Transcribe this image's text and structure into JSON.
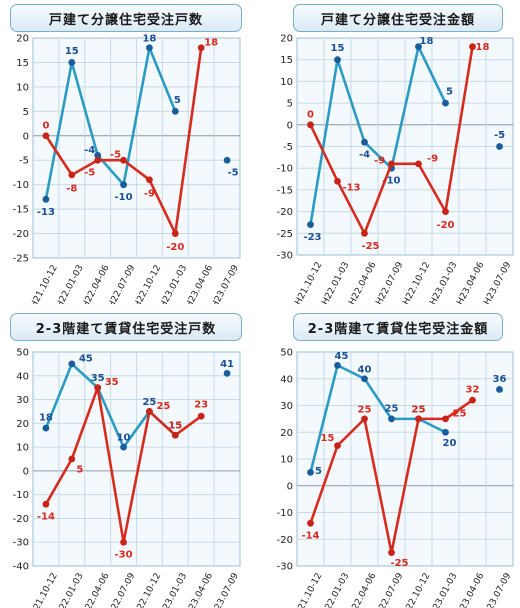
{
  "colors": {
    "blue": "#2a9cc4",
    "red": "#d62b1e",
    "blue_label": "#1a4f96",
    "red_label": "#d62b1e",
    "plot_bg": "#f3f9fc",
    "grid": "#c9dbe6"
  },
  "chart_data": [
    {
      "type": "line",
      "title": "戸建て分譲住宅受注戸数",
      "categories": [
        "H21.10-12",
        "H22.01-03",
        "H22.04-06",
        "H22.07-09",
        "H22.10-12",
        "H23.01-03",
        "H23.04-06",
        "H23.07-09"
      ],
      "ylim": [
        -25,
        20
      ],
      "yticks": [
        -25,
        -20,
        -15,
        -10,
        -5,
        0,
        5,
        10,
        15,
        20
      ],
      "grid": true,
      "series": [
        {
          "color": "blue",
          "values": [
            -13,
            15,
            -4,
            -10,
            18,
            5,
            null,
            -5
          ]
        },
        {
          "color": "red",
          "values": [
            0,
            -8,
            -5,
            -5,
            -9,
            -20,
            18,
            null
          ]
        }
      ]
    },
    {
      "type": "line",
      "title": "戸建て分譲住宅受注金額",
      "categories": [
        "H21.10-12",
        "H22.01-03",
        "H22.04-06",
        "H22.07-09",
        "H22.10-12",
        "H23.01-03",
        "H23.04-06",
        "H23.07-09"
      ],
      "ylim": [
        -30,
        20
      ],
      "yticks": [
        -30,
        -25,
        -20,
        -15,
        -10,
        -5,
        0,
        5,
        10,
        15,
        20
      ],
      "grid": true,
      "series": [
        {
          "color": "blue",
          "values": [
            -23,
            15,
            -4,
            -10,
            18,
            5,
            null,
            -5
          ]
        },
        {
          "color": "red",
          "values": [
            0,
            -13,
            -25,
            -9,
            -9,
            -20,
            18,
            null
          ]
        }
      ]
    },
    {
      "type": "line",
      "title": "2-3階建て賃貸住宅受注戸数",
      "categories": [
        "H21.10-12",
        "H22.01-03",
        "H22.04-06",
        "H22.07-09",
        "H22.10-12",
        "H23.01-03",
        "H23.04-06",
        "H23.07-09"
      ],
      "ylim": [
        -40,
        50
      ],
      "yticks": [
        -40,
        -30,
        -20,
        -10,
        0,
        10,
        20,
        30,
        40,
        50
      ],
      "grid": true,
      "series": [
        {
          "color": "blue",
          "values": [
            18,
            45,
            35,
            10,
            25,
            15,
            null,
            41
          ]
        },
        {
          "color": "red",
          "values": [
            -14,
            5,
            35,
            -30,
            25,
            15,
            23,
            null
          ]
        }
      ]
    },
    {
      "type": "line",
      "title": "2-3階建て賃貸住宅受注金額",
      "categories": [
        "H21.10-12",
        "H22.01-03",
        "H22.04-06",
        "H22.07-09",
        "H22.10-12",
        "H23.01-03",
        "H23.04-06",
        "H23.07-09"
      ],
      "ylim": [
        -30,
        50
      ],
      "yticks": [
        -30,
        -20,
        -10,
        0,
        10,
        20,
        30,
        40,
        50
      ],
      "grid": true,
      "series": [
        {
          "color": "blue",
          "values": [
            5,
            45,
            40,
            25,
            25,
            20,
            null,
            36
          ]
        },
        {
          "color": "red",
          "values": [
            -14,
            15,
            25,
            -25,
            25,
            25,
            32,
            null
          ]
        }
      ]
    }
  ]
}
